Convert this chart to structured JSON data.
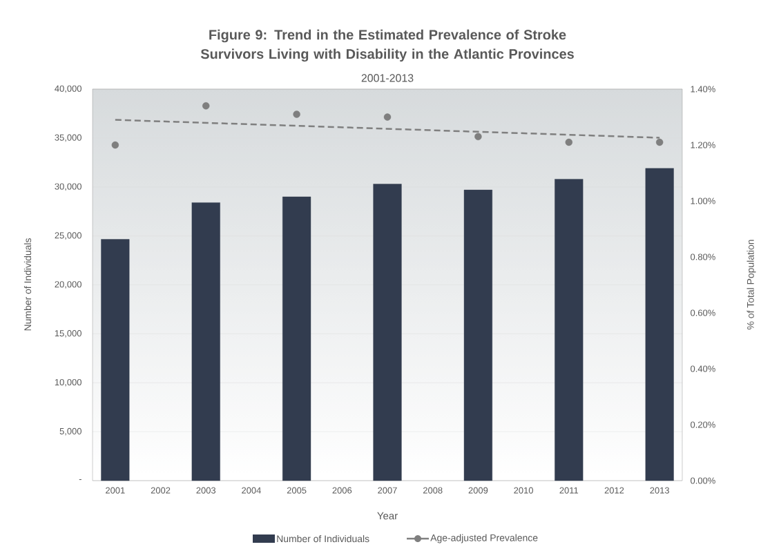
{
  "chart_data": {
    "type": "bar",
    "title": "Figure 9: Trend in the Estimated Prevalence of Stroke Survivors Living with Disability in the Atlantic Provinces",
    "subtitle": "2001-2013",
    "xlabel": "Year",
    "ylabel": "Number of Individuals",
    "y2label": "% of Total Population",
    "x": [
      2001,
      2003,
      2005,
      2007,
      2009,
      2011,
      2013
    ],
    "xlim": [
      2000.5,
      2013.5
    ],
    "xticks": [
      2001,
      2002,
      2003,
      2004,
      2005,
      2006,
      2007,
      2008,
      2009,
      2010,
      2011,
      2012,
      2013
    ],
    "ylim": [
      0,
      40000
    ],
    "yticks": [
      {
        "value": 0,
        "label": "-"
      },
      {
        "value": 5000,
        "label": "5,000"
      },
      {
        "value": 10000,
        "label": "10,000"
      },
      {
        "value": 15000,
        "label": "15,000"
      },
      {
        "value": 20000,
        "label": "20,000"
      },
      {
        "value": 25000,
        "label": "25,000"
      },
      {
        "value": 30000,
        "label": "30,000"
      },
      {
        "value": 35000,
        "label": "35,000"
      },
      {
        "value": 40000,
        "label": "40,000"
      }
    ],
    "y2lim": [
      0,
      1.4
    ],
    "y2ticks": [
      {
        "value": 0,
        "label": "0.00%"
      },
      {
        "value": 0.2,
        "label": "0.20%"
      },
      {
        "value": 0.4,
        "label": "0.40%"
      },
      {
        "value": 0.6,
        "label": "0.60%"
      },
      {
        "value": 0.8,
        "label": "0.80%"
      },
      {
        "value": 1.0,
        "label": "1.00%"
      },
      {
        "value": 1.2,
        "label": "1.20%"
      },
      {
        "value": 1.4,
        "label": "1.40%"
      }
    ],
    "grid": "y",
    "legend": "bottom",
    "series": [
      {
        "name": "Number of Individuals",
        "color": "#323c4f",
        "values": [
          24650,
          28400,
          29000,
          30300,
          29700,
          30800,
          31900
        ]
      },
      {
        "name": "Age-adjusted Prevalence",
        "type": "scatter",
        "axis": "y2",
        "marker": "circle",
        "color": "#7f7f7f",
        "values": [
          1.2,
          1.34,
          1.31,
          1.3,
          1.23,
          1.21,
          1.21
        ]
      },
      {
        "type": "line",
        "axis": "y2",
        "line_style": "dashed",
        "marker": "none",
        "color": "#7f7f7f",
        "x": [
          2001,
          2013
        ],
        "values": [
          1.29,
          1.226
        ]
      }
    ]
  }
}
